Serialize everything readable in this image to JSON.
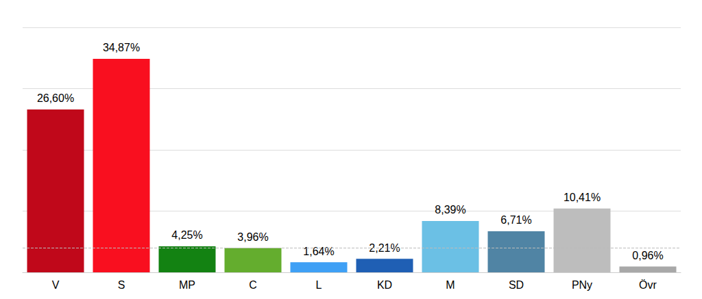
{
  "chart_data": {
    "type": "bar",
    "categories": [
      "V",
      "S",
      "MP",
      "C",
      "L",
      "KD",
      "M",
      "SD",
      "PNy",
      "Övr"
    ],
    "values": [
      26.6,
      34.87,
      4.25,
      3.96,
      1.64,
      2.21,
      8.39,
      6.71,
      10.41,
      0.96
    ],
    "value_labels": [
      "26,60%",
      "34,87%",
      "4,25%",
      "3,96%",
      "1,64%",
      "2,21%",
      "8,39%",
      "6,71%",
      "10,41%",
      "0,96%"
    ],
    "colors": [
      "#c0081a",
      "#f90f1f",
      "#138212",
      "#64ad2e",
      "#3fa0f5",
      "#1f5fb4",
      "#6bc0e5",
      "#5084a4",
      "#bdbdbd",
      "#a8a8a8"
    ],
    "threshold": 4,
    "ylim": [
      0,
      40
    ],
    "yticks": [
      0,
      10,
      20,
      30,
      40
    ],
    "grid": true,
    "data_labels": true,
    "tick_labels": "x"
  }
}
